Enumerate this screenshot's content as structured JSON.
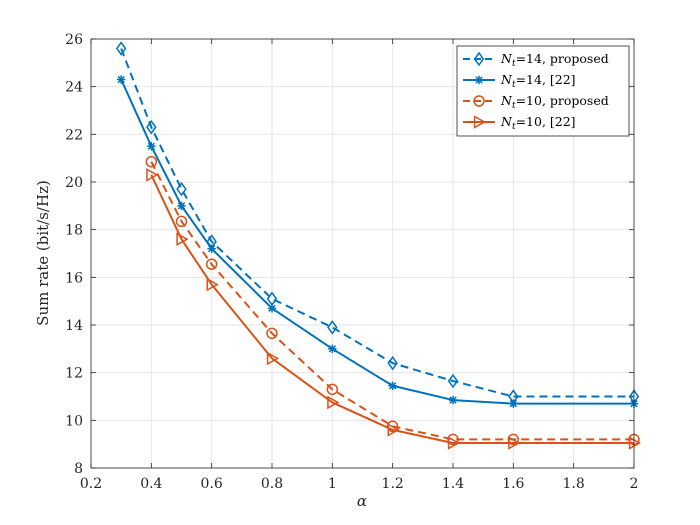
{
  "chart_data": {
    "type": "line",
    "title": "",
    "xlabel": "α",
    "ylabel": "Sum rate (bit/s/Hz)",
    "xlim": [
      0.2,
      2
    ],
    "ylim": [
      8,
      26
    ],
    "xticks": [
      "0.2",
      "0.4",
      "0.6",
      "0.8",
      "1",
      "1.2",
      "1.4",
      "1.6",
      "1.8",
      "2"
    ],
    "yticks": [
      "8",
      "10",
      "12",
      "14",
      "16",
      "18",
      "20",
      "22",
      "24",
      "26"
    ],
    "grid": true,
    "legend_position": "top-right",
    "colors": {
      "blue": "#0072BD",
      "orange": "#D95319",
      "grid": "#e6e6e6",
      "axis": "#262626"
    },
    "series": [
      {
        "name": "N_t=14, proposed",
        "legend_main": "N",
        "legend_sub": "t",
        "legend_rest": "=14, proposed",
        "color": "#0072BD",
        "linestyle": "dashed",
        "marker": "diamond",
        "x": [
          0.3,
          0.4,
          0.5,
          0.6,
          0.8,
          1.0,
          1.2,
          1.4,
          1.6,
          2.0
        ],
        "y": [
          25.6,
          22.3,
          19.7,
          17.5,
          15.1,
          13.9,
          12.4,
          11.65,
          11.0,
          11.0
        ]
      },
      {
        "name": "N_t=14, [22]",
        "legend_main": "N",
        "legend_sub": "t",
        "legend_rest": "=14, [22]",
        "color": "#0072BD",
        "linestyle": "solid",
        "marker": "asterisk",
        "x": [
          0.3,
          0.4,
          0.5,
          0.6,
          0.8,
          1.0,
          1.2,
          1.4,
          1.6,
          2.0
        ],
        "y": [
          24.3,
          21.5,
          19.0,
          17.2,
          14.7,
          13.0,
          11.45,
          10.85,
          10.7,
          10.7
        ]
      },
      {
        "name": "N_t=10, proposed",
        "legend_main": "N",
        "legend_sub": "t",
        "legend_rest": "=10, proposed",
        "color": "#D95319",
        "linestyle": "dashed",
        "marker": "circle",
        "x": [
          0.4,
          0.5,
          0.6,
          0.8,
          1.0,
          1.2,
          1.4,
          1.6,
          2.0
        ],
        "y": [
          20.85,
          18.35,
          16.55,
          13.65,
          11.3,
          9.75,
          9.2,
          9.2,
          9.2
        ]
      },
      {
        "name": "N_t=10, [22]",
        "legend_main": "N",
        "legend_sub": "t",
        "legend_rest": "=10, [22]",
        "color": "#D95319",
        "linestyle": "solid",
        "marker": "triangle-right",
        "x": [
          0.4,
          0.5,
          0.6,
          0.8,
          1.0,
          1.2,
          1.4,
          1.6,
          2.0
        ],
        "y": [
          20.3,
          17.6,
          15.7,
          12.6,
          10.75,
          9.6,
          9.05,
          9.05,
          9.05
        ]
      }
    ]
  }
}
